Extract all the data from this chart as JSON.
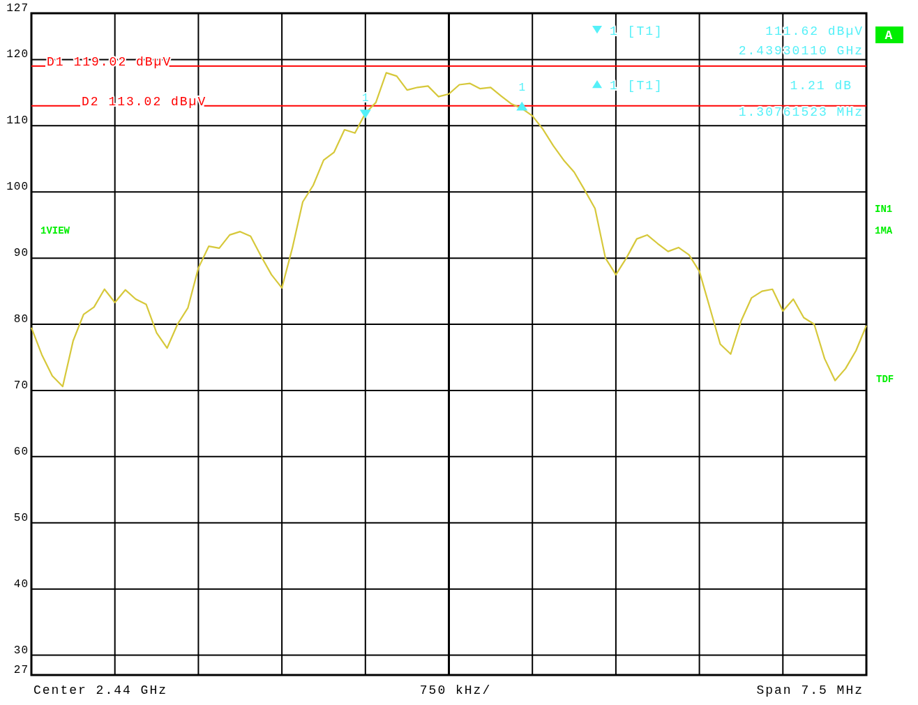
{
  "chart_data": {
    "type": "line",
    "categories": [
      null,
      null,
      null,
      null,
      null,
      null,
      null,
      null,
      null,
      null,
      null,
      null,
      null,
      null,
      null,
      null,
      null,
      null,
      null,
      null,
      null,
      null,
      null,
      null,
      null,
      null,
      null,
      null,
      null,
      null,
      null,
      null,
      null,
      null,
      null,
      null,
      null,
      null,
      null,
      null,
      null,
      null,
      null,
      null,
      null,
      null,
      null,
      null,
      null,
      null,
      null,
      null,
      null,
      null,
      null,
      null,
      null,
      null,
      null,
      null,
      null,
      null,
      null,
      null,
      null,
      null,
      null,
      null,
      null,
      null,
      null,
      null,
      null,
      null,
      null,
      null,
      null,
      null,
      null,
      null,
      null
    ],
    "series": [
      {
        "color": "#d6c83a",
        "values": [
          79.5,
          75.4,
          72.2,
          70.6,
          77.5,
          81.5,
          82.6,
          85.3,
          83.3,
          85.2,
          83.8,
          83.0,
          78.7,
          76.4,
          80.0,
          82.5,
          88.5,
          91.8,
          91.5,
          93.5,
          94.0,
          93.3,
          90.3,
          87.5,
          85.5,
          91.5,
          98.5,
          101.0,
          104.8,
          106.0,
          109.4,
          108.9,
          111.9,
          113.5,
          118.0,
          117.5,
          115.4,
          115.8,
          116.0,
          114.4,
          114.8,
          116.2,
          116.4,
          115.6,
          115.8,
          114.5,
          113.3,
          112.6,
          111.5,
          109.5,
          107.0,
          104.8,
          103.0,
          100.3,
          97.5,
          90.0,
          87.5,
          90.0,
          92.9,
          93.5,
          92.2,
          91.0,
          91.6,
          90.5,
          88.0,
          82.5,
          77.0,
          75.5,
          80.5,
          84.0,
          85.0,
          85.3,
          82.0,
          83.8,
          81.0,
          80.0,
          74.8,
          71.5,
          73.3,
          76.0,
          79.8
        ]
      },
      {
        "type": "scatter",
        "name": "1",
        "color": "#55f0f8",
        "marker": "triangle",
        "values": [
          null,
          null,
          null,
          null,
          null,
          null,
          null,
          null,
          null,
          null,
          null,
          null,
          null,
          null,
          null,
          null,
          null,
          null,
          null,
          null,
          null,
          null,
          null,
          null,
          null,
          null,
          null,
          null,
          null,
          null,
          null,
          null,
          111.6,
          null,
          null,
          null,
          null,
          null,
          null,
          null,
          null,
          null,
          null,
          null,
          null,
          null,
          null,
          null,
          null,
          null,
          null,
          null,
          null,
          null,
          null,
          null,
          null,
          null,
          null,
          null,
          null,
          null,
          null,
          null,
          null,
          null,
          null,
          null,
          null,
          null,
          null,
          null,
          null,
          null,
          null,
          null,
          null,
          null,
          null,
          null,
          null
        ]
      },
      {
        "type": "scatter",
        "name": "1",
        "color": "#55f0f8",
        "marker": "triangle",
        "values": [
          null,
          null,
          null,
          null,
          null,
          null,
          null,
          null,
          null,
          null,
          null,
          null,
          null,
          null,
          null,
          null,
          null,
          null,
          null,
          null,
          null,
          null,
          null,
          null,
          null,
          null,
          null,
          null,
          null,
          null,
          null,
          null,
          null,
          null,
          null,
          null,
          null,
          null,
          null,
          null,
          null,
          null,
          null,
          null,
          null,
          null,
          null,
          112.8,
          null,
          null,
          null,
          null,
          null,
          null,
          null,
          null,
          null,
          null,
          null,
          null,
          null,
          null,
          null,
          null,
          null,
          null,
          null,
          null,
          null,
          null,
          null,
          null,
          null,
          null,
          null,
          null,
          null,
          null,
          null,
          null,
          null
        ]
      }
    ],
    "ylim": [
      27,
      127
    ],
    "yticks": [
      27,
      30,
      40,
      50,
      60,
      70,
      80,
      90,
      100,
      110,
      120,
      127
    ],
    "grid": true,
    "line_style": "solid",
    "marker": "none",
    "ref_lines": [
      {
        "axis": "y",
        "value": 119.02,
        "label": "D1 119.02 dBµV",
        "color": "#ff0000"
      },
      {
        "axis": "y",
        "value": 113.02,
        "label": "D2 113.02 dBµV",
        "color": "#ff0000"
      }
    ],
    "annotations": [
      "1 [T1]",
      "111.62 dBµV",
      "2.43930110 GHz",
      "1 [T1]",
      "1.21 dB",
      "1.30761523 MHz",
      "A",
      "1VIEW",
      "IN1",
      "1MA",
      "TDF",
      "Center 2.44 GHz",
      "750 kHz/",
      "Span 7.5 MHz"
    ]
  }
}
